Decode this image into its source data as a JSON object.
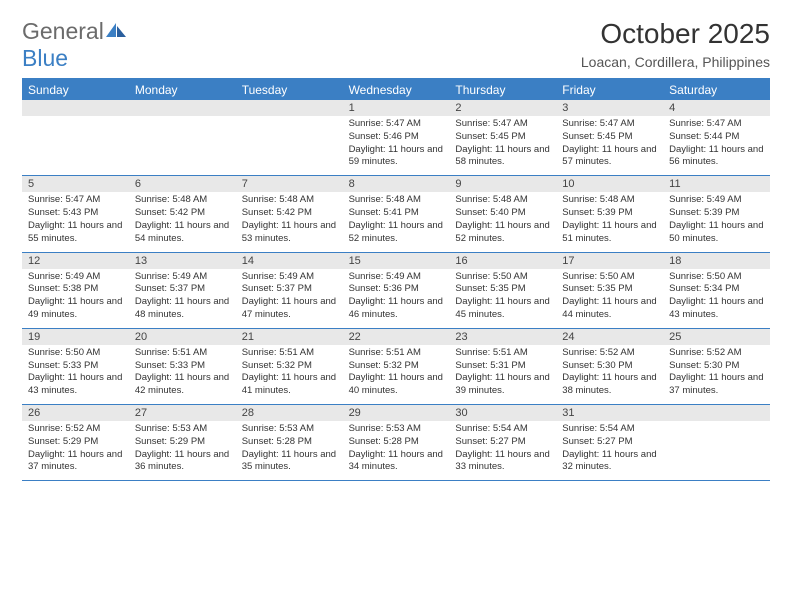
{
  "brand": {
    "word1": "General",
    "word2": "Blue"
  },
  "title": "October 2025",
  "subtitle": "Loacan, Cordillera, Philippines",
  "colors": {
    "brand_blue": "#3b7fc4",
    "brand_gray": "#6b6b6b",
    "header_bg": "#3b7fc4",
    "header_text": "#ffffff",
    "daynum_bg": "#e8e8e8",
    "body_text": "#333333",
    "rule": "#3b7fc4"
  },
  "day_names": [
    "Sunday",
    "Monday",
    "Tuesday",
    "Wednesday",
    "Thursday",
    "Friday",
    "Saturday"
  ],
  "first_weekday_index": 3,
  "days": [
    {
      "n": 1,
      "sunrise": "5:47 AM",
      "sunset": "5:46 PM",
      "daylight": "11 hours and 59 minutes."
    },
    {
      "n": 2,
      "sunrise": "5:47 AM",
      "sunset": "5:45 PM",
      "daylight": "11 hours and 58 minutes."
    },
    {
      "n": 3,
      "sunrise": "5:47 AM",
      "sunset": "5:45 PM",
      "daylight": "11 hours and 57 minutes."
    },
    {
      "n": 4,
      "sunrise": "5:47 AM",
      "sunset": "5:44 PM",
      "daylight": "11 hours and 56 minutes."
    },
    {
      "n": 5,
      "sunrise": "5:47 AM",
      "sunset": "5:43 PM",
      "daylight": "11 hours and 55 minutes."
    },
    {
      "n": 6,
      "sunrise": "5:48 AM",
      "sunset": "5:42 PM",
      "daylight": "11 hours and 54 minutes."
    },
    {
      "n": 7,
      "sunrise": "5:48 AM",
      "sunset": "5:42 PM",
      "daylight": "11 hours and 53 minutes."
    },
    {
      "n": 8,
      "sunrise": "5:48 AM",
      "sunset": "5:41 PM",
      "daylight": "11 hours and 52 minutes."
    },
    {
      "n": 9,
      "sunrise": "5:48 AM",
      "sunset": "5:40 PM",
      "daylight": "11 hours and 52 minutes."
    },
    {
      "n": 10,
      "sunrise": "5:48 AM",
      "sunset": "5:39 PM",
      "daylight": "11 hours and 51 minutes."
    },
    {
      "n": 11,
      "sunrise": "5:49 AM",
      "sunset": "5:39 PM",
      "daylight": "11 hours and 50 minutes."
    },
    {
      "n": 12,
      "sunrise": "5:49 AM",
      "sunset": "5:38 PM",
      "daylight": "11 hours and 49 minutes."
    },
    {
      "n": 13,
      "sunrise": "5:49 AM",
      "sunset": "5:37 PM",
      "daylight": "11 hours and 48 minutes."
    },
    {
      "n": 14,
      "sunrise": "5:49 AM",
      "sunset": "5:37 PM",
      "daylight": "11 hours and 47 minutes."
    },
    {
      "n": 15,
      "sunrise": "5:49 AM",
      "sunset": "5:36 PM",
      "daylight": "11 hours and 46 minutes."
    },
    {
      "n": 16,
      "sunrise": "5:50 AM",
      "sunset": "5:35 PM",
      "daylight": "11 hours and 45 minutes."
    },
    {
      "n": 17,
      "sunrise": "5:50 AM",
      "sunset": "5:35 PM",
      "daylight": "11 hours and 44 minutes."
    },
    {
      "n": 18,
      "sunrise": "5:50 AM",
      "sunset": "5:34 PM",
      "daylight": "11 hours and 43 minutes."
    },
    {
      "n": 19,
      "sunrise": "5:50 AM",
      "sunset": "5:33 PM",
      "daylight": "11 hours and 43 minutes."
    },
    {
      "n": 20,
      "sunrise": "5:51 AM",
      "sunset": "5:33 PM",
      "daylight": "11 hours and 42 minutes."
    },
    {
      "n": 21,
      "sunrise": "5:51 AM",
      "sunset": "5:32 PM",
      "daylight": "11 hours and 41 minutes."
    },
    {
      "n": 22,
      "sunrise": "5:51 AM",
      "sunset": "5:32 PM",
      "daylight": "11 hours and 40 minutes."
    },
    {
      "n": 23,
      "sunrise": "5:51 AM",
      "sunset": "5:31 PM",
      "daylight": "11 hours and 39 minutes."
    },
    {
      "n": 24,
      "sunrise": "5:52 AM",
      "sunset": "5:30 PM",
      "daylight": "11 hours and 38 minutes."
    },
    {
      "n": 25,
      "sunrise": "5:52 AM",
      "sunset": "5:30 PM",
      "daylight": "11 hours and 37 minutes."
    },
    {
      "n": 26,
      "sunrise": "5:52 AM",
      "sunset": "5:29 PM",
      "daylight": "11 hours and 37 minutes."
    },
    {
      "n": 27,
      "sunrise": "5:53 AM",
      "sunset": "5:29 PM",
      "daylight": "11 hours and 36 minutes."
    },
    {
      "n": 28,
      "sunrise": "5:53 AM",
      "sunset": "5:28 PM",
      "daylight": "11 hours and 35 minutes."
    },
    {
      "n": 29,
      "sunrise": "5:53 AM",
      "sunset": "5:28 PM",
      "daylight": "11 hours and 34 minutes."
    },
    {
      "n": 30,
      "sunrise": "5:54 AM",
      "sunset": "5:27 PM",
      "daylight": "11 hours and 33 minutes."
    },
    {
      "n": 31,
      "sunrise": "5:54 AM",
      "sunset": "5:27 PM",
      "daylight": "11 hours and 32 minutes."
    }
  ],
  "labels": {
    "sunrise": "Sunrise:",
    "sunset": "Sunset:",
    "daylight": "Daylight:"
  }
}
